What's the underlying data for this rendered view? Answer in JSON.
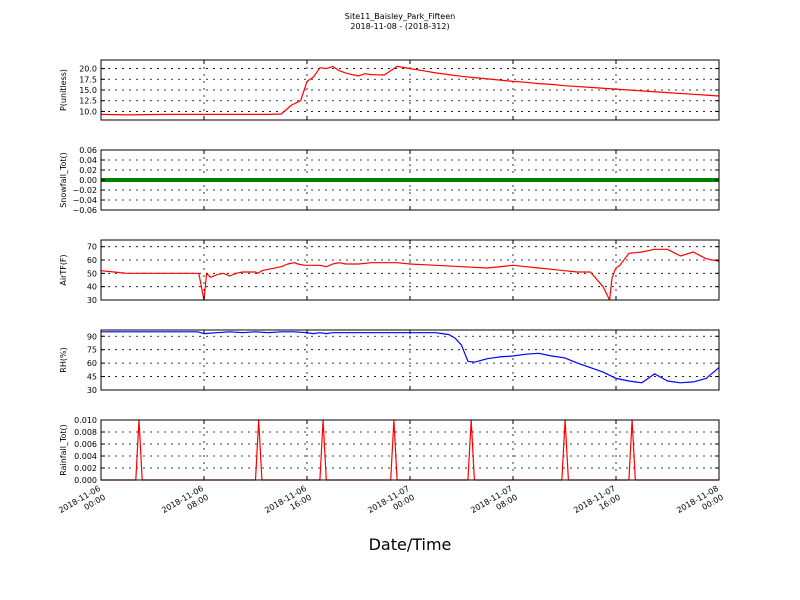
{
  "figure": {
    "title_line1": "Site11_Baisley_Park_Fifteen",
    "title_line2": "2018-11-08 - (2018-312)",
    "xlabel": "Date/Time"
  },
  "chart_data": [
    {
      "type": "line",
      "ylabel": "P(unitless)",
      "color": "#ff0000",
      "ylim": [
        8.0,
        22.0
      ],
      "yticks": [
        10.0,
        12.5,
        15.0,
        17.5,
        20.0
      ],
      "ytick_labels": [
        "10.0",
        "12.5",
        "15.0",
        "17.5",
        "20.0"
      ],
      "grid": true,
      "series": [
        {
          "x": [
            0,
            2,
            5,
            9,
            12,
            13,
            14,
            14.8,
            15.5,
            16,
            16.5,
            17,
            17.5,
            18,
            18.5,
            19,
            19.5,
            20,
            20.5,
            21,
            22,
            23,
            24,
            25,
            26,
            27,
            28,
            29,
            30,
            31,
            32,
            33,
            34,
            35,
            36,
            38,
            40,
            42,
            44,
            46,
            47,
            48
          ],
          "y": [
            9.3,
            9.2,
            9.3,
            9.3,
            9.3,
            9.3,
            9.4,
            11.5,
            12.5,
            17.0,
            18.0,
            20.2,
            20.0,
            20.5,
            19.5,
            19.0,
            18.6,
            18.3,
            18.8,
            18.6,
            18.5,
            20.5,
            20.0,
            19.5,
            19.0,
            18.6,
            18.2,
            17.9,
            17.6,
            17.3,
            17.0,
            16.8,
            16.5,
            16.3,
            16.0,
            15.6,
            15.2,
            14.8,
            14.4,
            14.0,
            13.8,
            13.6
          ]
        }
      ]
    },
    {
      "type": "line",
      "ylabel": "Snowfall_Tot()",
      "color": "#008000",
      "ylim": [
        -0.06,
        0.06
      ],
      "yticks": [
        -0.06,
        -0.04,
        -0.02,
        0.0,
        0.02,
        0.04,
        0.06
      ],
      "ytick_labels": [
        "−0.06",
        "−0.04",
        "−0.02",
        "0.00",
        "0.02",
        "0.04",
        "0.06"
      ],
      "grid": true,
      "series": [
        {
          "x": [
            0,
            48
          ],
          "y": [
            0,
            0
          ]
        }
      ]
    },
    {
      "type": "line",
      "ylabel": "AirTF(F)",
      "color": "#ff0000",
      "ylim": [
        30,
        75
      ],
      "yticks": [
        30,
        40,
        50,
        60,
        70
      ],
      "ytick_labels": [
        "30",
        "40",
        "50",
        "60",
        "70"
      ],
      "grid": true,
      "series": [
        {
          "x": [
            0,
            1,
            2,
            3,
            4,
            5,
            6,
            7,
            7.6,
            7.8,
            8.0,
            8.2,
            8.5,
            9,
            9.5,
            10,
            10.5,
            11,
            12,
            12.2,
            12.5,
            13,
            14,
            14.5,
            15,
            15.3,
            15.8,
            16.5,
            17,
            17.5,
            18,
            18.5,
            19,
            19.5,
            20,
            21,
            22,
            23,
            24,
            26,
            28,
            30,
            32,
            33,
            34,
            35,
            36,
            37,
            38,
            39,
            39.5,
            39.7,
            39.8,
            39.9,
            40.0,
            40.3,
            41,
            42,
            43,
            44,
            45,
            46,
            47,
            48
          ],
          "y": [
            52,
            51,
            50,
            50,
            50,
            50,
            50,
            50,
            50,
            40,
            30,
            50,
            47,
            49,
            50,
            48,
            50,
            51,
            51,
            50,
            52,
            53,
            55,
            57,
            58,
            57,
            56,
            56,
            56,
            55,
            57,
            58,
            57,
            57,
            57,
            58,
            58,
            58,
            57,
            56,
            55,
            54,
            56,
            55,
            54,
            53,
            52,
            51,
            51,
            40,
            30,
            47,
            49,
            52,
            54,
            56,
            65,
            66,
            68,
            68,
            63,
            66,
            61,
            59
          ]
        }
      ]
    },
    {
      "type": "line",
      "ylabel": "RH(%)",
      "color": "#0000ff",
      "ylim": [
        30,
        97
      ],
      "yticks": [
        30,
        45,
        60,
        75,
        90
      ],
      "ytick_labels": [
        "30",
        "45",
        "60",
        "75",
        "90"
      ],
      "grid": true,
      "series": [
        {
          "x": [
            0,
            2,
            4,
            6,
            7.5,
            8,
            9,
            10,
            11,
            12,
            13,
            14,
            15,
            16,
            16.5,
            17,
            17.5,
            18,
            19,
            20,
            22,
            24,
            26,
            26.5,
            27,
            27.5,
            28,
            28.5,
            29,
            30,
            30.5,
            31,
            32,
            33,
            34,
            35,
            36,
            37,
            38,
            39,
            40,
            41,
            42,
            43,
            44,
            45,
            46,
            47,
            48
          ],
          "y": [
            95,
            95,
            95,
            95,
            95,
            93,
            94,
            95,
            94,
            95,
            94,
            95,
            95,
            94,
            93,
            94,
            93,
            94,
            94,
            94,
            94,
            94,
            94,
            93,
            92,
            88,
            80,
            62,
            61,
            65,
            66,
            67,
            68,
            70,
            71,
            68,
            66,
            60,
            55,
            50,
            43,
            40,
            38,
            48,
            40,
            38,
            39,
            43,
            55
          ]
        }
      ]
    },
    {
      "type": "line",
      "ylabel": "Rainfall_Tot()",
      "color": "#ff0000",
      "ylim": [
        0.0,
        0.01
      ],
      "yticks": [
        0.0,
        0.002,
        0.004,
        0.006,
        0.008,
        0.01
      ],
      "ytick_labels": [
        "0.000",
        "0.002",
        "0.004",
        "0.006",
        "0.008",
        "0.010"
      ],
      "grid": true,
      "series": [
        {
          "x": [
            0,
            2.7,
            2.95,
            3.2,
            12.0,
            12.25,
            12.5,
            17.0,
            17.25,
            17.5,
            22.5,
            22.75,
            23.0,
            28.5,
            28.75,
            29.0,
            35.8,
            36.05,
            36.3,
            41.0,
            41.25,
            41.5,
            48
          ],
          "y": [
            0,
            0,
            0.01,
            0,
            0,
            0.01,
            0,
            0,
            0.01,
            0,
            0,
            0.01,
            0,
            0,
            0.01,
            0,
            0,
            0.01,
            0,
            0,
            0.01,
            0,
            0
          ]
        }
      ]
    }
  ],
  "x_axis": {
    "unit": "hours",
    "xlim": [
      0,
      48
    ],
    "ticks": [
      0,
      8,
      16,
      24,
      32,
      40,
      48
    ],
    "tick_labels": [
      [
        "2018-11-06",
        "00:00"
      ],
      [
        "2018-11-06",
        "08:00"
      ],
      [
        "2018-11-06",
        "16:00"
      ],
      [
        "2018-11-07",
        "00:00"
      ],
      [
        "2018-11-07",
        "08:00"
      ],
      [
        "2018-11-07",
        "16:00"
      ],
      [
        "2018-11-08",
        "00:00"
      ]
    ]
  }
}
